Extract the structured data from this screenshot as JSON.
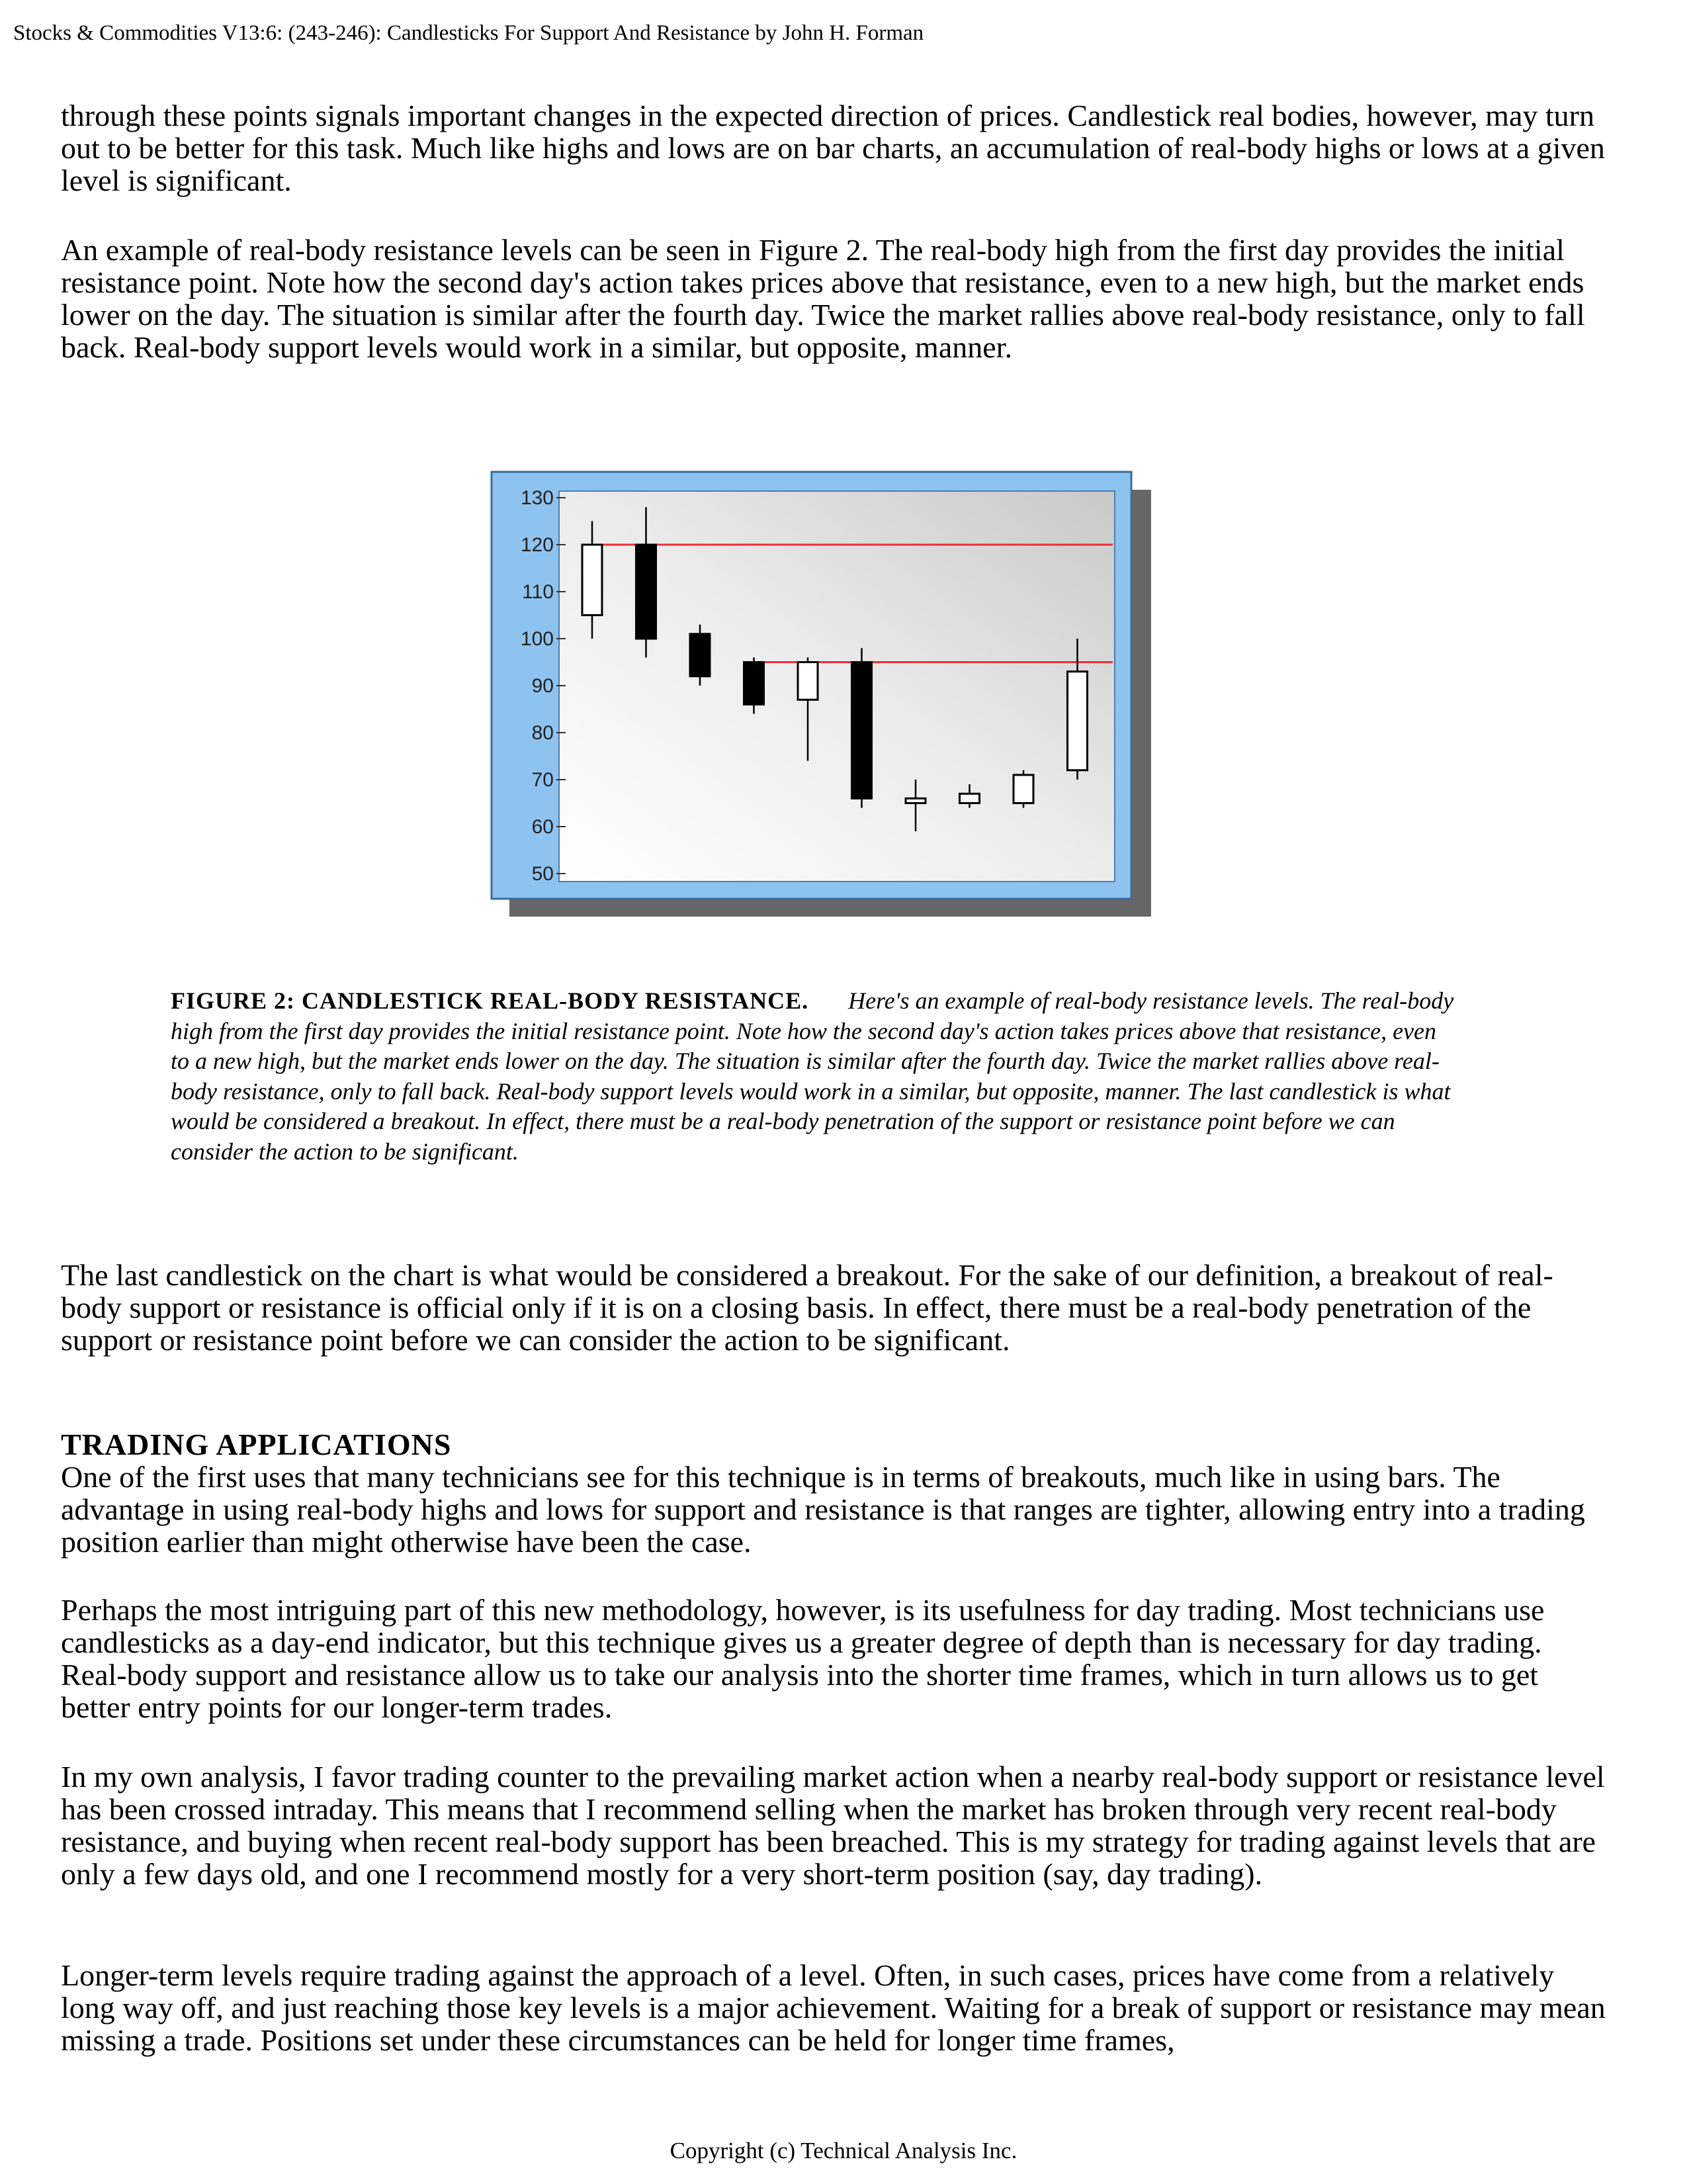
{
  "header": {
    "running_title": "Stocks & Commodities V13:6: (243-246): Candlesticks For Support And Resistance by John H. Forman"
  },
  "paragraphs": {
    "p1": "through these points signals important changes in the expected direction of prices. Candlestick real bodies, however, may turn out to be better for this task. Much like highs and lows are on bar charts, an accumulation of real-body highs or lows at a given level is significant.",
    "p2": "An example of real-body resistance levels can be seen in Figure 2. The real-body high from the first day provides the initial resistance point. Note how the second day's action takes prices above that resistance, even to a new high, but the market ends lower on the day. The situation is similar after the fourth day. Twice the market rallies above real-body resistance, only to fall back. Real-body support levels would work in a similar, but opposite, manner.",
    "p3": "The last candlestick on the chart is what would be considered a breakout. For the sake of our definition, a breakout of real-body support or resistance is official only if it is on a closing basis. In effect, there must be a real-body penetration of the support or resistance point before we can consider the action to be significant.",
    "p4": "One of the first uses that many technicians see for this technique is in terms of breakouts, much like in using bars. The advantage in using real-body highs and lows for support and resistance is that ranges are tighter, allowing entry into a trading position earlier than might otherwise have been the case.",
    "p5": "Perhaps the most intriguing part of this new methodology, however, is its usefulness for day trading. Most technicians use candlesticks as a day-end indicator, but this technique gives us a greater degree of depth than is necessary for day trading. Real-body support and resistance allow us to take our analysis into the shorter time frames, which in turn allows us to get better entry points for our longer-term trades.",
    "p6": "In my own analysis, I favor trading counter to the prevailing market action when a nearby real-body support or resistance level has been crossed intraday. This means that I recommend selling when the market has broken through very recent real-body resistance, and buying when recent real-body support has been breached. This is my strategy for trading against levels that are only a few days old, and one I recommend mostly for a very short-term position (say, day trading).",
    "p7": "Longer-term levels require trading against the approach of a level. Often, in such cases, prices have come from a relatively long way off, and just reaching those key levels is a major achievement. Waiting for a break of support or resistance may mean missing a trade. Positions set under these circumstances can be held for longer time frames,"
  },
  "section_heading": "TRADING  APPLICATIONS",
  "figure": {
    "caption_title": "FIGURE 2: CANDLESTICK REAL-BODY RESISTANCE.",
    "caption_text": "Here's an example of real-body resistance levels. The real-body high from the first day provides the initial resistance point. Note how the second day's action takes prices above that resistance, even to a new high, but the market ends lower on the day. The situation is similar after the fourth day. Twice the market rallies above real-body resistance, only to fall back. Real-body support levels would work in a similar, but opposite, manner. The last candlestick is what would be considered a breakout. In effect, there must be a real-body penetration of the support or resistance point before we can consider the action to be significant."
  },
  "chart_data": {
    "type": "candlestick",
    "title": "",
    "xlabel": "",
    "ylabel": "",
    "ylim": [
      50,
      130
    ],
    "yticks": [
      130,
      120,
      110,
      100,
      90,
      80,
      70,
      60,
      50
    ],
    "grid": false,
    "candles": [
      {
        "open": 105,
        "close": 120,
        "high": 125,
        "low": 100
      },
      {
        "open": 120,
        "close": 100,
        "high": 128,
        "low": 96
      },
      {
        "open": 101,
        "close": 92,
        "high": 103,
        "low": 90
      },
      {
        "open": 95,
        "close": 86,
        "high": 96,
        "low": 84
      },
      {
        "open": 87,
        "close": 95,
        "high": 96,
        "low": 74
      },
      {
        "open": 95,
        "close": 66,
        "high": 98,
        "low": 64
      },
      {
        "open": 65,
        "close": 66,
        "high": 70,
        "low": 59
      },
      {
        "open": 65,
        "close": 67,
        "high": 69,
        "low": 64
      },
      {
        "open": 65,
        "close": 71,
        "high": 72,
        "low": 64
      },
      {
        "open": 72,
        "close": 93,
        "high": 100,
        "low": 70
      }
    ],
    "resistance_lines": [
      {
        "level": 120,
        "from_candle": 0
      },
      {
        "level": 95,
        "from_candle": 3
      }
    ],
    "colors": {
      "frame": "#8fc3ef",
      "resistance": "#e8303a",
      "candle_outline": "#000000",
      "bull_fill": "#ffffff",
      "bear_fill": "#000000"
    }
  },
  "footer": {
    "copyright": "Copyright (c) Technical Analysis Inc."
  }
}
